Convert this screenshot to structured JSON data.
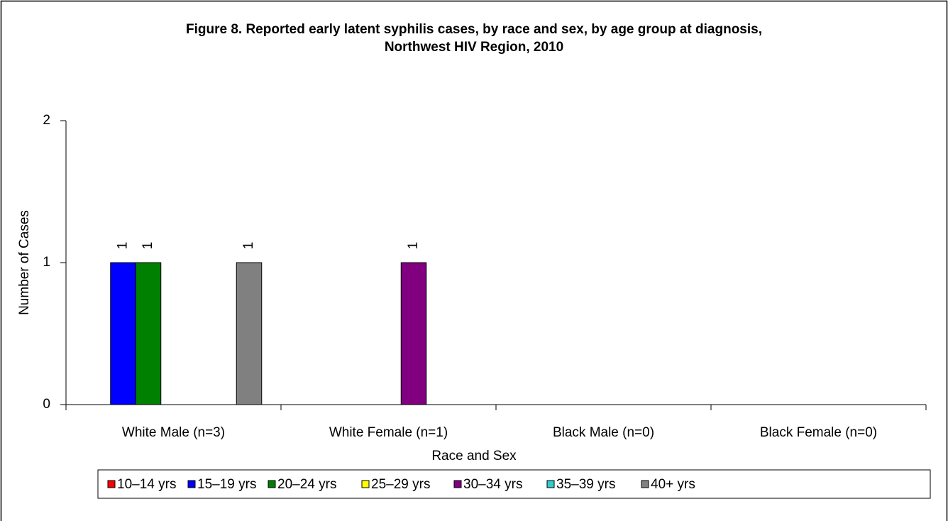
{
  "chart_data": {
    "type": "bar",
    "title": [
      "Figure 8.  Reported early latent syphilis cases, by race and sex, by age group at diagnosis,",
      "Northwest HIV Region, 2010"
    ],
    "x_label": "Race and Sex",
    "y_label": "Number of Cases",
    "categories": [
      "White Male (n=3)",
      "White Female (n=1)",
      "Black Male (n=0)",
      "Black Female (n=0)"
    ],
    "series": [
      {
        "name": "10–14 yrs",
        "color": "#ff0000",
        "values": [
          0,
          0,
          0,
          0
        ]
      },
      {
        "name": "15–19 yrs",
        "color": "#0000ff",
        "values": [
          1,
          0,
          0,
          0
        ]
      },
      {
        "name": "20–24 yrs",
        "color": "#008000",
        "values": [
          1,
          0,
          0,
          0
        ]
      },
      {
        "name": "25–29 yrs",
        "color": "#ffff00",
        "values": [
          0,
          0,
          0,
          0
        ]
      },
      {
        "name": "30–34 yrs",
        "color": "#800080",
        "values": [
          0,
          1,
          0,
          0
        ]
      },
      {
        "name": "35–39 yrs",
        "color": "#33cccc",
        "values": [
          0,
          0,
          0,
          0
        ]
      },
      {
        "name": "40+ yrs",
        "color": "#808080",
        "values": [
          1,
          0,
          0,
          0
        ]
      }
    ],
    "ylim": [
      0,
      2
    ],
    "yticks": [
      0,
      1,
      2
    ],
    "grid": false,
    "legend": "bottom"
  }
}
